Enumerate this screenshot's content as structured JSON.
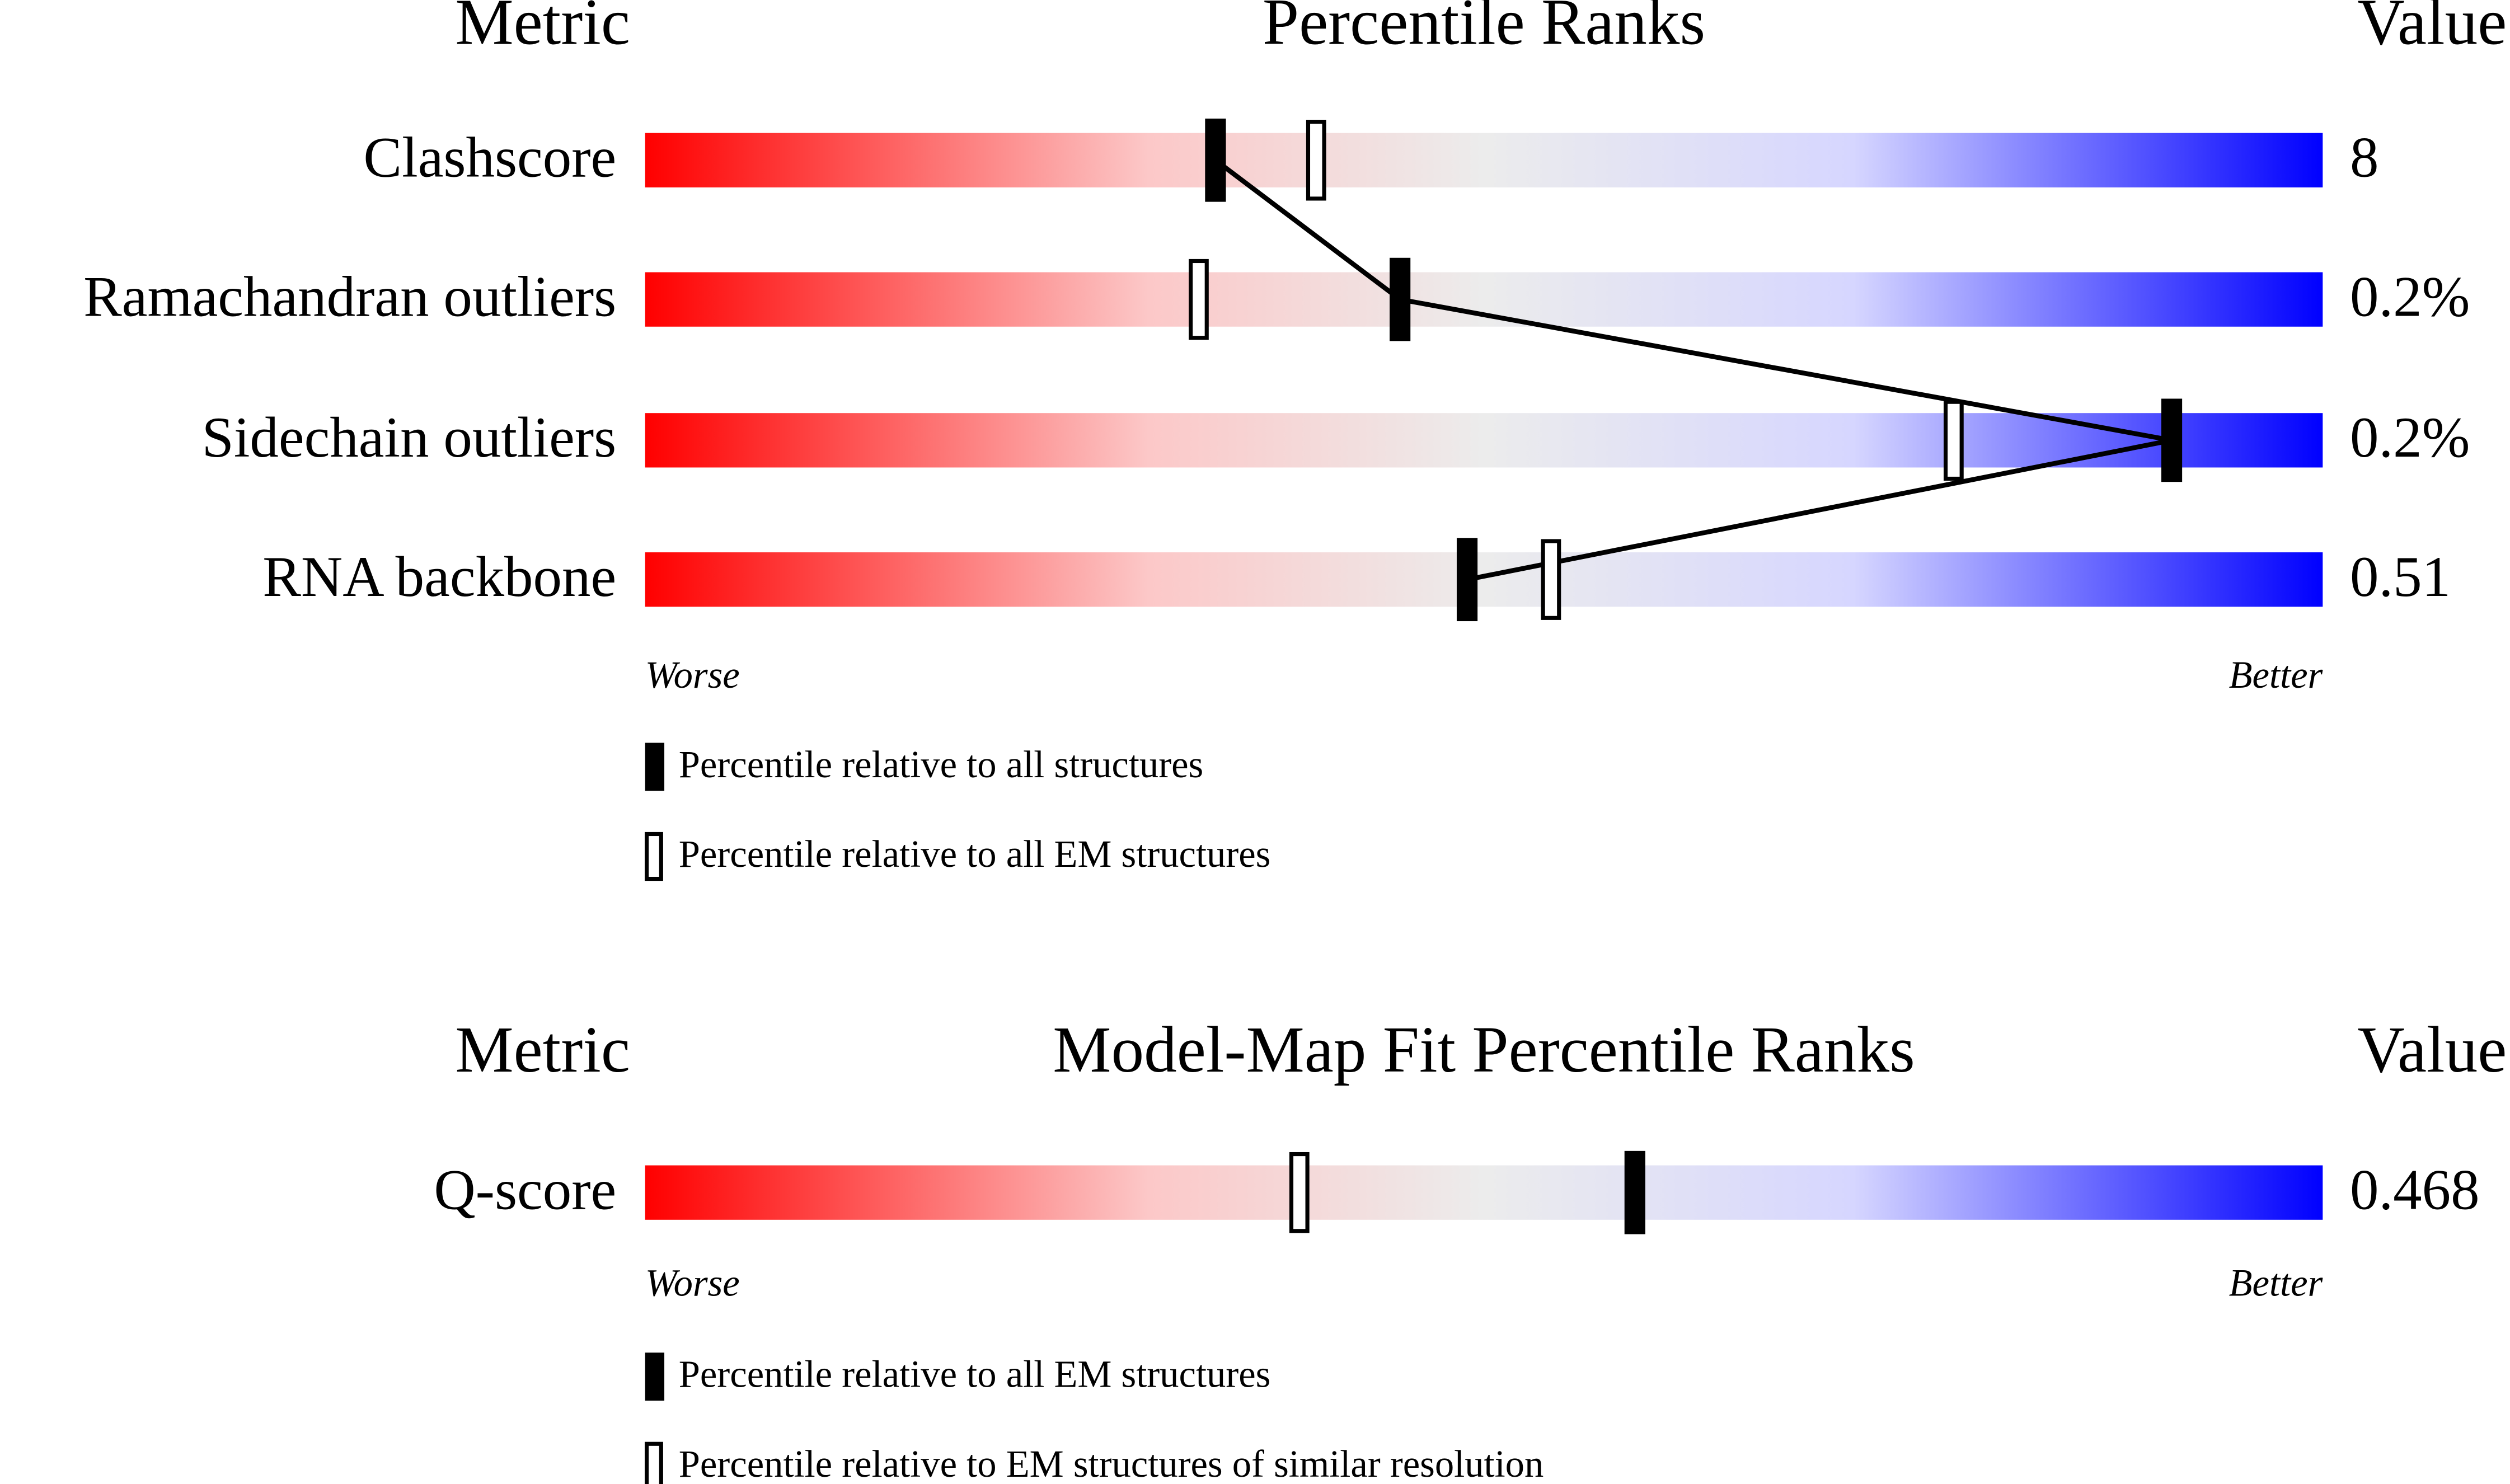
{
  "panels": [
    {
      "header": {
        "metric": "Metric",
        "title": "Percentile Ranks",
        "value": "Value"
      },
      "xlim": [
        0,
        100
      ],
      "rows": [
        {
          "label": "Clashscore",
          "value": "8",
          "all": 34,
          "em": 40
        },
        {
          "label": "Ramachandran outliers",
          "value": "0.2%",
          "all": 45,
          "em": 33
        },
        {
          "label": "Sidechain outliers",
          "value": "0.2%",
          "all": 91,
          "em": 78
        },
        {
          "label": "RNA backbone",
          "value": "0.51",
          "all": 49,
          "em": 54
        }
      ],
      "worse": "Worse",
      "better": "Better",
      "legend": {
        "filled": "Percentile relative to all structures",
        "open": "Percentile relative to all EM structures"
      }
    },
    {
      "header": {
        "metric": "Metric",
        "title": "Model-Map Fit Percentile Ranks",
        "value": "Value"
      },
      "xlim": [
        0,
        100
      ],
      "rows": [
        {
          "label": "Q-score",
          "value": "0.468",
          "all": 59,
          "em": 39
        }
      ],
      "worse": "Worse",
      "better": "Better",
      "legend": {
        "filled": "Percentile relative to all EM structures",
        "open": "Percentile relative to EM structures of similar resolution"
      }
    }
  ]
}
